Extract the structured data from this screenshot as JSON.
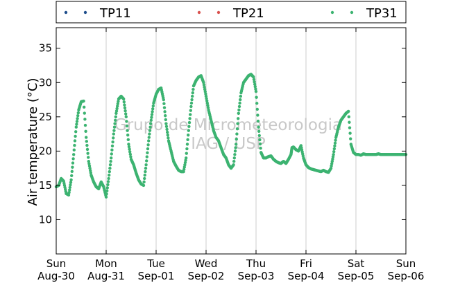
{
  "chart_data": {
    "type": "scatter",
    "ylabel": "Air temperature (°C)",
    "xlabel": "",
    "ylim": [
      5,
      38
    ],
    "xlim": [
      0,
      7
    ],
    "yticks": [
      10,
      15,
      20,
      25,
      30,
      35
    ],
    "xticks": [
      {
        "day": 0,
        "weekday": "Sun",
        "date": "Aug-30"
      },
      {
        "day": 1,
        "weekday": "Mon",
        "date": "Aug-31"
      },
      {
        "day": 2,
        "weekday": "Tue",
        "date": "Sep-01"
      },
      {
        "day": 3,
        "weekday": "Wed",
        "date": "Sep-02"
      },
      {
        "day": 4,
        "weekday": "Thu",
        "date": "Sep-03"
      },
      {
        "day": 5,
        "weekday": "Fri",
        "date": "Sep-04"
      },
      {
        "day": 6,
        "weekday": "Sat",
        "date": "Sep-05"
      },
      {
        "day": 7,
        "weekday": "Sun",
        "date": "Sep-06"
      }
    ],
    "grid": "vertical",
    "legend_position": "top",
    "watermark": [
      "Grupo de Micrometeorologia",
      "IAG / USP"
    ],
    "series": [
      {
        "name": "TP11",
        "color": "#1f4e8c",
        "x": [],
        "y": []
      },
      {
        "name": "TP21",
        "color": "#d9534f",
        "x": [],
        "y": []
      },
      {
        "name": "TP31",
        "color": "#3cb371",
        "x": [
          0.0,
          0.05,
          0.1,
          0.15,
          0.2,
          0.25,
          0.3,
          0.35,
          0.4,
          0.45,
          0.5,
          0.55,
          0.6,
          0.65,
          0.7,
          0.75,
          0.8,
          0.85,
          0.9,
          0.95,
          1.0,
          1.05,
          1.1,
          1.15,
          1.2,
          1.25,
          1.3,
          1.35,
          1.4,
          1.45,
          1.5,
          1.55,
          1.6,
          1.65,
          1.7,
          1.75,
          1.8,
          1.85,
          1.9,
          1.95,
          2.0,
          2.05,
          2.1,
          2.15,
          2.2,
          2.25,
          2.3,
          2.35,
          2.4,
          2.45,
          2.5,
          2.55,
          2.6,
          2.65,
          2.7,
          2.75,
          2.8,
          2.85,
          2.9,
          2.95,
          3.0,
          3.05,
          3.1,
          3.15,
          3.2,
          3.25,
          3.3,
          3.35,
          3.4,
          3.45,
          3.5,
          3.55,
          3.6,
          3.65,
          3.7,
          3.75,
          3.8,
          3.85,
          3.9,
          3.95,
          4.0,
          4.05,
          4.1,
          4.15,
          4.2,
          4.25,
          4.3,
          4.35,
          4.4,
          4.45,
          4.5,
          4.55,
          4.6,
          4.65,
          4.7,
          4.72,
          4.75,
          4.8,
          4.85,
          4.9,
          4.95,
          5.0,
          5.05,
          5.1,
          5.15,
          5.2,
          5.25,
          5.3,
          5.35,
          5.4,
          5.45,
          5.5,
          5.55,
          5.6,
          5.65,
          5.7,
          5.75,
          5.8,
          5.85,
          5.9,
          5.95,
          6.0,
          6.05,
          6.1,
          6.15,
          6.2,
          6.25,
          6.3,
          6.35,
          6.4,
          6.45,
          6.5,
          6.55,
          6.6,
          6.65,
          6.7,
          6.75,
          6.8,
          6.85,
          6.9,
          6.95,
          7.0
        ],
        "y": [
          14.8,
          15.0,
          16.0,
          15.6,
          13.8,
          13.6,
          15.8,
          19.5,
          23.5,
          26.0,
          27.2,
          27.3,
          22.0,
          18.5,
          16.5,
          15.5,
          14.8,
          14.5,
          15.5,
          14.8,
          13.3,
          16.0,
          19.0,
          22.5,
          25.5,
          27.6,
          28.0,
          27.6,
          25.0,
          21.0,
          18.8,
          18.0,
          16.8,
          15.8,
          15.2,
          15.0,
          18.0,
          21.5,
          24.5,
          27.0,
          28.3,
          29.0,
          29.2,
          27.5,
          24.0,
          21.5,
          20.0,
          18.5,
          17.8,
          17.2,
          17.0,
          17.0,
          19.0,
          23.0,
          26.5,
          29.5,
          30.3,
          30.8,
          31.0,
          30.0,
          28.0,
          26.0,
          24.5,
          23.0,
          22.0,
          21.5,
          20.5,
          19.5,
          19.0,
          18.0,
          17.5,
          18.0,
          21.0,
          25.5,
          28.5,
          30.0,
          30.5,
          31.0,
          31.2,
          30.8,
          28.7,
          23.5,
          19.8,
          19.0,
          19.0,
          19.2,
          19.3,
          18.8,
          18.5,
          18.3,
          18.2,
          18.5,
          18.2,
          18.8,
          19.5,
          20.5,
          20.6,
          20.2,
          20.0,
          20.8,
          19.0,
          18.0,
          17.6,
          17.4,
          17.3,
          17.2,
          17.1,
          17.0,
          17.2,
          17.0,
          16.9,
          17.5,
          19.5,
          22.0,
          23.5,
          24.5,
          25.0,
          25.5,
          25.8,
          21.0,
          19.8,
          19.5,
          19.5,
          19.4,
          19.6,
          19.5,
          19.5,
          19.5,
          19.5,
          19.5,
          19.6,
          19.5,
          19.5,
          19.5,
          19.5,
          19.5,
          19.5,
          19.5,
          19.5,
          19.5,
          19.5,
          19.5
        ]
      }
    ]
  }
}
